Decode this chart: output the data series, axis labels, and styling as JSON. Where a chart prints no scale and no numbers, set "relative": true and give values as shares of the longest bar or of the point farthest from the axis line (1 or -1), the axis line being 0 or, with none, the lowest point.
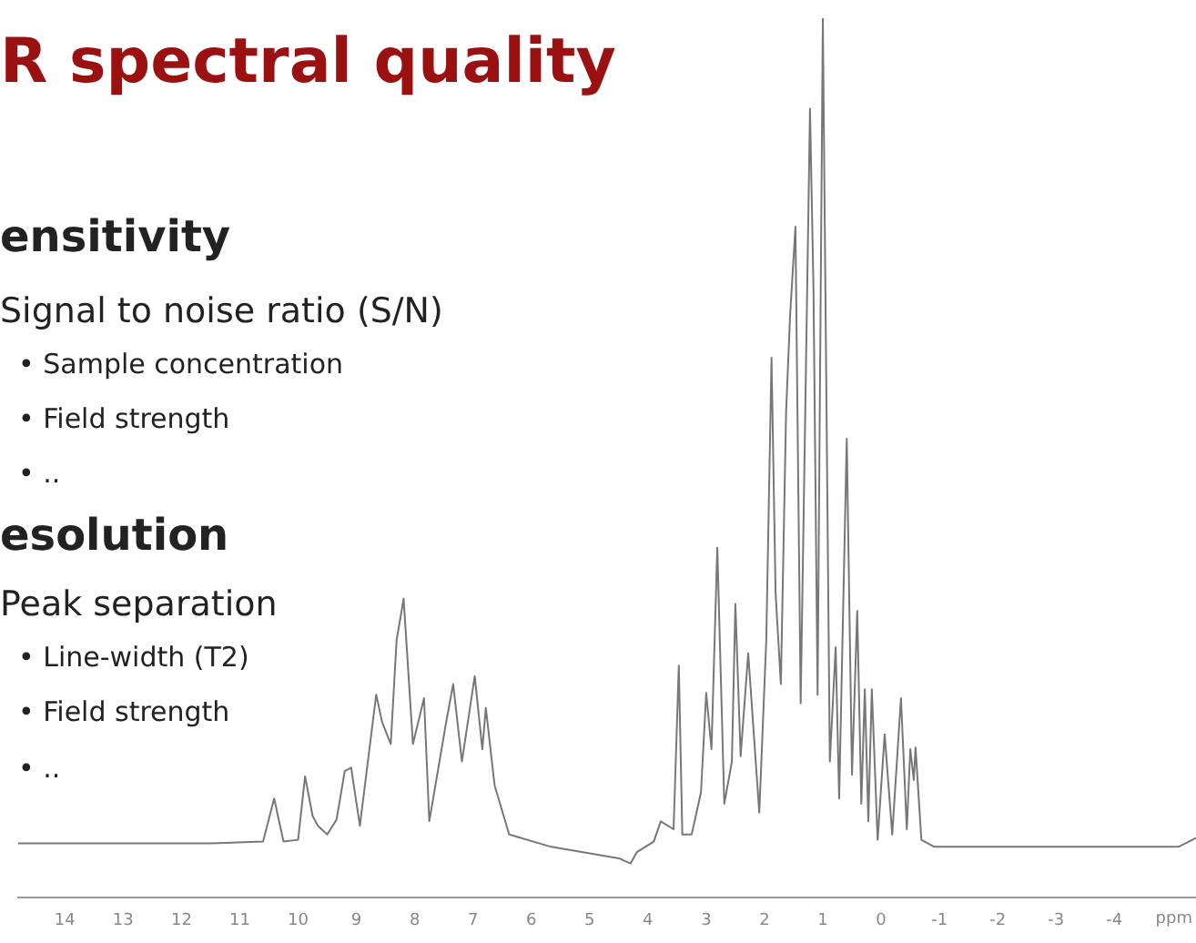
{
  "chart_data": {
    "type": "line",
    "relative": true,
    "title": "R spectral quality",
    "xlabel": "ppm",
    "annotations": [
      "ensitivity",
      "Signal to noise ratio (S/N)",
      "• Sample concentration",
      "• Field strength",
      "• ..",
      "esolution",
      "Peak separation",
      "• Line-width (T2)",
      "• Field strength",
      "• .."
    ],
    "xlim": [
      14.8,
      -5.4
    ],
    "xticks": [
      14,
      13,
      12,
      11,
      10,
      9,
      8,
      7,
      6,
      5,
      4,
      3,
      2,
      1,
      0,
      -1,
      -2,
      -3,
      -4
    ],
    "grid": false,
    "legend": false,
    "marker": "none",
    "line_style": "solid",
    "series": [
      {
        "color": "#777777",
        "x": [
          14.8,
          11.5,
          10.6,
          10.41,
          10.25,
          10.0,
          9.88,
          9.75,
          9.66,
          9.5,
          9.34,
          9.2,
          9.09,
          8.94,
          8.66,
          8.56,
          8.41,
          8.31,
          8.19,
          8.03,
          7.84,
          7.75,
          7.47,
          7.34,
          7.19,
          6.97,
          6.84,
          6.78,
          6.63,
          6.38,
          5.66,
          4.5,
          4.3,
          4.19,
          3.9,
          3.78,
          3.56,
          3.47,
          3.41,
          3.25,
          3.09,
          3.0,
          2.91,
          2.81,
          2.69,
          2.56,
          2.5,
          2.41,
          2.28,
          2.09,
          1.97,
          1.88,
          1.81,
          1.72,
          1.63,
          1.56,
          1.47,
          1.38,
          1.22,
          1.16,
          1.09,
          1.0,
          0.88,
          0.78,
          0.72,
          0.59,
          0.5,
          0.41,
          0.34,
          0.28,
          0.22,
          0.16,
          0.06,
          -0.06,
          -0.19,
          -0.34,
          -0.44,
          -0.5,
          -0.56,
          -0.59,
          -0.69,
          -0.91,
          -5.1,
          -5.4
        ],
        "values": [
          0.062,
          0.062,
          0.064,
          0.113,
          0.064,
          0.066,
          0.138,
          0.093,
          0.082,
          0.072,
          0.089,
          0.144,
          0.148,
          0.082,
          0.231,
          0.2,
          0.175,
          0.293,
          0.34,
          0.175,
          0.227,
          0.087,
          0.196,
          0.243,
          0.155,
          0.252,
          0.169,
          0.216,
          0.128,
          0.072,
          0.058,
          0.045,
          0.039,
          0.052,
          0.064,
          0.087,
          0.078,
          0.264,
          0.072,
          0.072,
          0.12,
          0.233,
          0.169,
          0.398,
          0.107,
          0.155,
          0.334,
          0.161,
          0.278,
          0.097,
          0.293,
          0.614,
          0.346,
          0.243,
          0.553,
          0.664,
          0.763,
          0.221,
          0.897,
          0.691,
          0.231,
          1,
          0.155,
          0.285,
          0.113,
          0.522,
          0.14,
          0.326,
          0.107,
          0.237,
          0.087,
          0.237,
          0.066,
          0.186,
          0.072,
          0.227,
          0.078,
          0.169,
          0.134,
          0.171,
          0.066,
          0.058,
          0.058,
          0.068
        ]
      }
    ]
  }
}
